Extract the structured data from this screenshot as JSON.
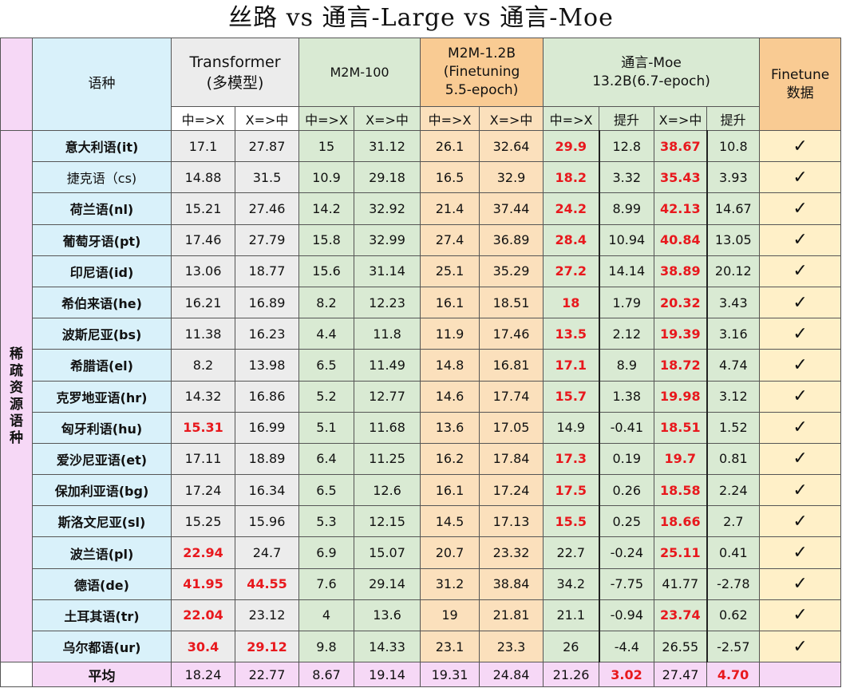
{
  "title": "丝路 vs 通言-Large vs 通言-Moe",
  "header": {
    "lang_col": "语种",
    "groups": [
      {
        "line1": "Transformer",
        "line2": "(多模型)"
      },
      {
        "line1": "M2M-100",
        "line2": ""
      },
      {
        "line1": "M2M-1.2B",
        "line2": "(Finetuning",
        "line3": "5.5-epoch)"
      },
      {
        "line1": "通言-Moe",
        "line2": "13.2B(6.7-epoch)"
      }
    ],
    "finetune": {
      "line1": "Finetune",
      "line2": "数据"
    },
    "sub": [
      "中=>X",
      "X=>中",
      "中=>X",
      "X=>中",
      "中=>X",
      "X=>中",
      "中=>X",
      "提升",
      "X=>中",
      "提升"
    ]
  },
  "category": "稀疏资源语种",
  "rows": [
    {
      "lang": "意大利语(it)",
      "v": [
        "17.1",
        "27.87",
        "15",
        "31.12",
        "26.1",
        "32.64",
        "29.9",
        "12.8",
        "38.67",
        "10.8"
      ],
      "check": "✓"
    },
    {
      "lang": "捷克语（cs)",
      "v": [
        "14.88",
        "31.5",
        "10.9",
        "29.18",
        "16.5",
        "32.9",
        "18.2",
        "3.32",
        "35.43",
        "3.93"
      ],
      "check": "✓"
    },
    {
      "lang": "荷兰语(nl)",
      "v": [
        "15.21",
        "27.46",
        "14.2",
        "32.92",
        "21.4",
        "37.44",
        "24.2",
        "8.99",
        "42.13",
        "14.67"
      ],
      "check": "✓"
    },
    {
      "lang": "葡萄牙语(pt)",
      "v": [
        "17.46",
        "27.79",
        "15.8",
        "32.99",
        "27.4",
        "36.89",
        "28.4",
        "10.94",
        "40.84",
        "13.05"
      ],
      "check": "✓"
    },
    {
      "lang": "印尼语(id)",
      "v": [
        "13.06",
        "18.77",
        "15.6",
        "31.14",
        "25.1",
        "35.29",
        "27.2",
        "14.14",
        "38.89",
        "20.12"
      ],
      "check": "✓"
    },
    {
      "lang": "希伯来语(he)",
      "v": [
        "16.21",
        "16.89",
        "8.2",
        "12.23",
        "16.1",
        "18.51",
        "18",
        "1.79",
        "20.32",
        "3.43"
      ],
      "check": "✓"
    },
    {
      "lang": "波斯尼亚(bs)",
      "v": [
        "11.38",
        "16.23",
        "4.4",
        "11.8",
        "11.9",
        "17.46",
        "13.5",
        "2.12",
        "19.39",
        "3.16"
      ],
      "check": "✓"
    },
    {
      "lang": "希腊语(el)",
      "v": [
        "8.2",
        "13.98",
        "6.5",
        "11.49",
        "14.8",
        "16.81",
        "17.1",
        "8.9",
        "18.72",
        "4.74"
      ],
      "check": "✓"
    },
    {
      "lang": "克罗地亚语(hr)",
      "v": [
        "14.32",
        "16.86",
        "5.2",
        "12.77",
        "14.6",
        "17.74",
        "15.7",
        "1.38",
        "19.98",
        "3.12"
      ],
      "check": "✓"
    },
    {
      "lang": "匈牙利语(hu)",
      "v": [
        "15.31",
        "16.99",
        "5.1",
        "11.68",
        "13.6",
        "17.05",
        "14.9",
        "-0.41",
        "18.51",
        "1.52"
      ],
      "check": "✓"
    },
    {
      "lang": "爱沙尼亚语(et)",
      "v": [
        "17.11",
        "18.89",
        "6.4",
        "11.25",
        "16.2",
        "17.84",
        "17.3",
        "0.19",
        "19.7",
        "0.81"
      ],
      "check": "✓"
    },
    {
      "lang": "保加利亚语(bg)",
      "v": [
        "17.24",
        "16.34",
        "6.5",
        "12.6",
        "16.1",
        "17.24",
        "17.5",
        "0.26",
        "18.58",
        "2.24"
      ],
      "check": "✓"
    },
    {
      "lang": "斯洛文尼亚(sl)",
      "v": [
        "15.25",
        "15.96",
        "5.3",
        "12.15",
        "14.5",
        "17.13",
        "15.5",
        "0.25",
        "18.66",
        "2.7"
      ],
      "check": "✓"
    },
    {
      "lang": "波兰语(pl)",
      "v": [
        "22.94",
        "24.7",
        "6.9",
        "15.07",
        "20.7",
        "23.32",
        "22.7",
        "-0.24",
        "25.11",
        "0.41"
      ],
      "check": "✓"
    },
    {
      "lang": "德语(de)",
      "v": [
        "41.95",
        "44.55",
        "7.6",
        "29.14",
        "31.2",
        "38.84",
        "34.2",
        "-7.75",
        "41.77",
        "-2.78"
      ],
      "check": "✓"
    },
    {
      "lang": "土耳其语(tr)",
      "v": [
        "22.04",
        "23.12",
        "4",
        "13.6",
        "19",
        "21.81",
        "21.1",
        "-0.94",
        "23.74",
        "0.62"
      ],
      "check": "✓"
    },
    {
      "lang": "乌尔都语(ur)",
      "v": [
        "30.4",
        "29.12",
        "9.8",
        "14.33",
        "23.1",
        "23.3",
        "26",
        "-4.4",
        "26.55",
        "-2.57"
      ],
      "check": "✓"
    }
  ],
  "average": {
    "label": "平均",
    "v": [
      "18.24",
      "22.77",
      "8.67",
      "19.14",
      "19.31",
      "24.84",
      "21.26",
      "3.02",
      "27.47",
      "4.70"
    ]
  }
}
